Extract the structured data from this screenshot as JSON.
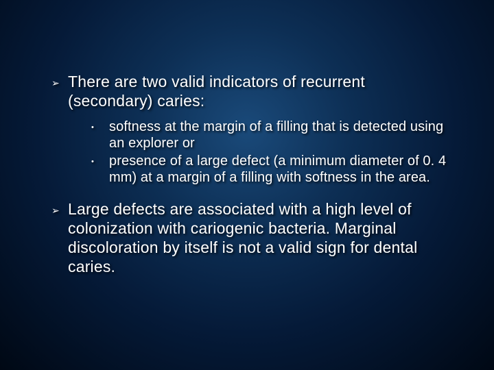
{
  "slide": {
    "mainBullets": [
      {
        "text": "There are two valid indicators of recurrent (secondary) caries:",
        "subBullets": [
          "softness at the margin of a filling that is detected using an explorer or",
          "presence of a large defect (a minimum diameter of 0. 4 mm) at a margin of a filling with softness in the area."
        ]
      },
      {
        "text": "Large defects are associated with a high level of colonization with cariogenic bacteria. Marginal discoloration by itself is not a valid sign for dental caries.",
        "subBullets": []
      }
    ],
    "mainBulletGlyph": "➢",
    "subBulletGlyph": "•"
  },
  "styling": {
    "textColor": "#ffffff",
    "mainFontSize": 23,
    "subFontSize": 20,
    "shadowColor": "rgba(0,0,0,0.8)"
  }
}
